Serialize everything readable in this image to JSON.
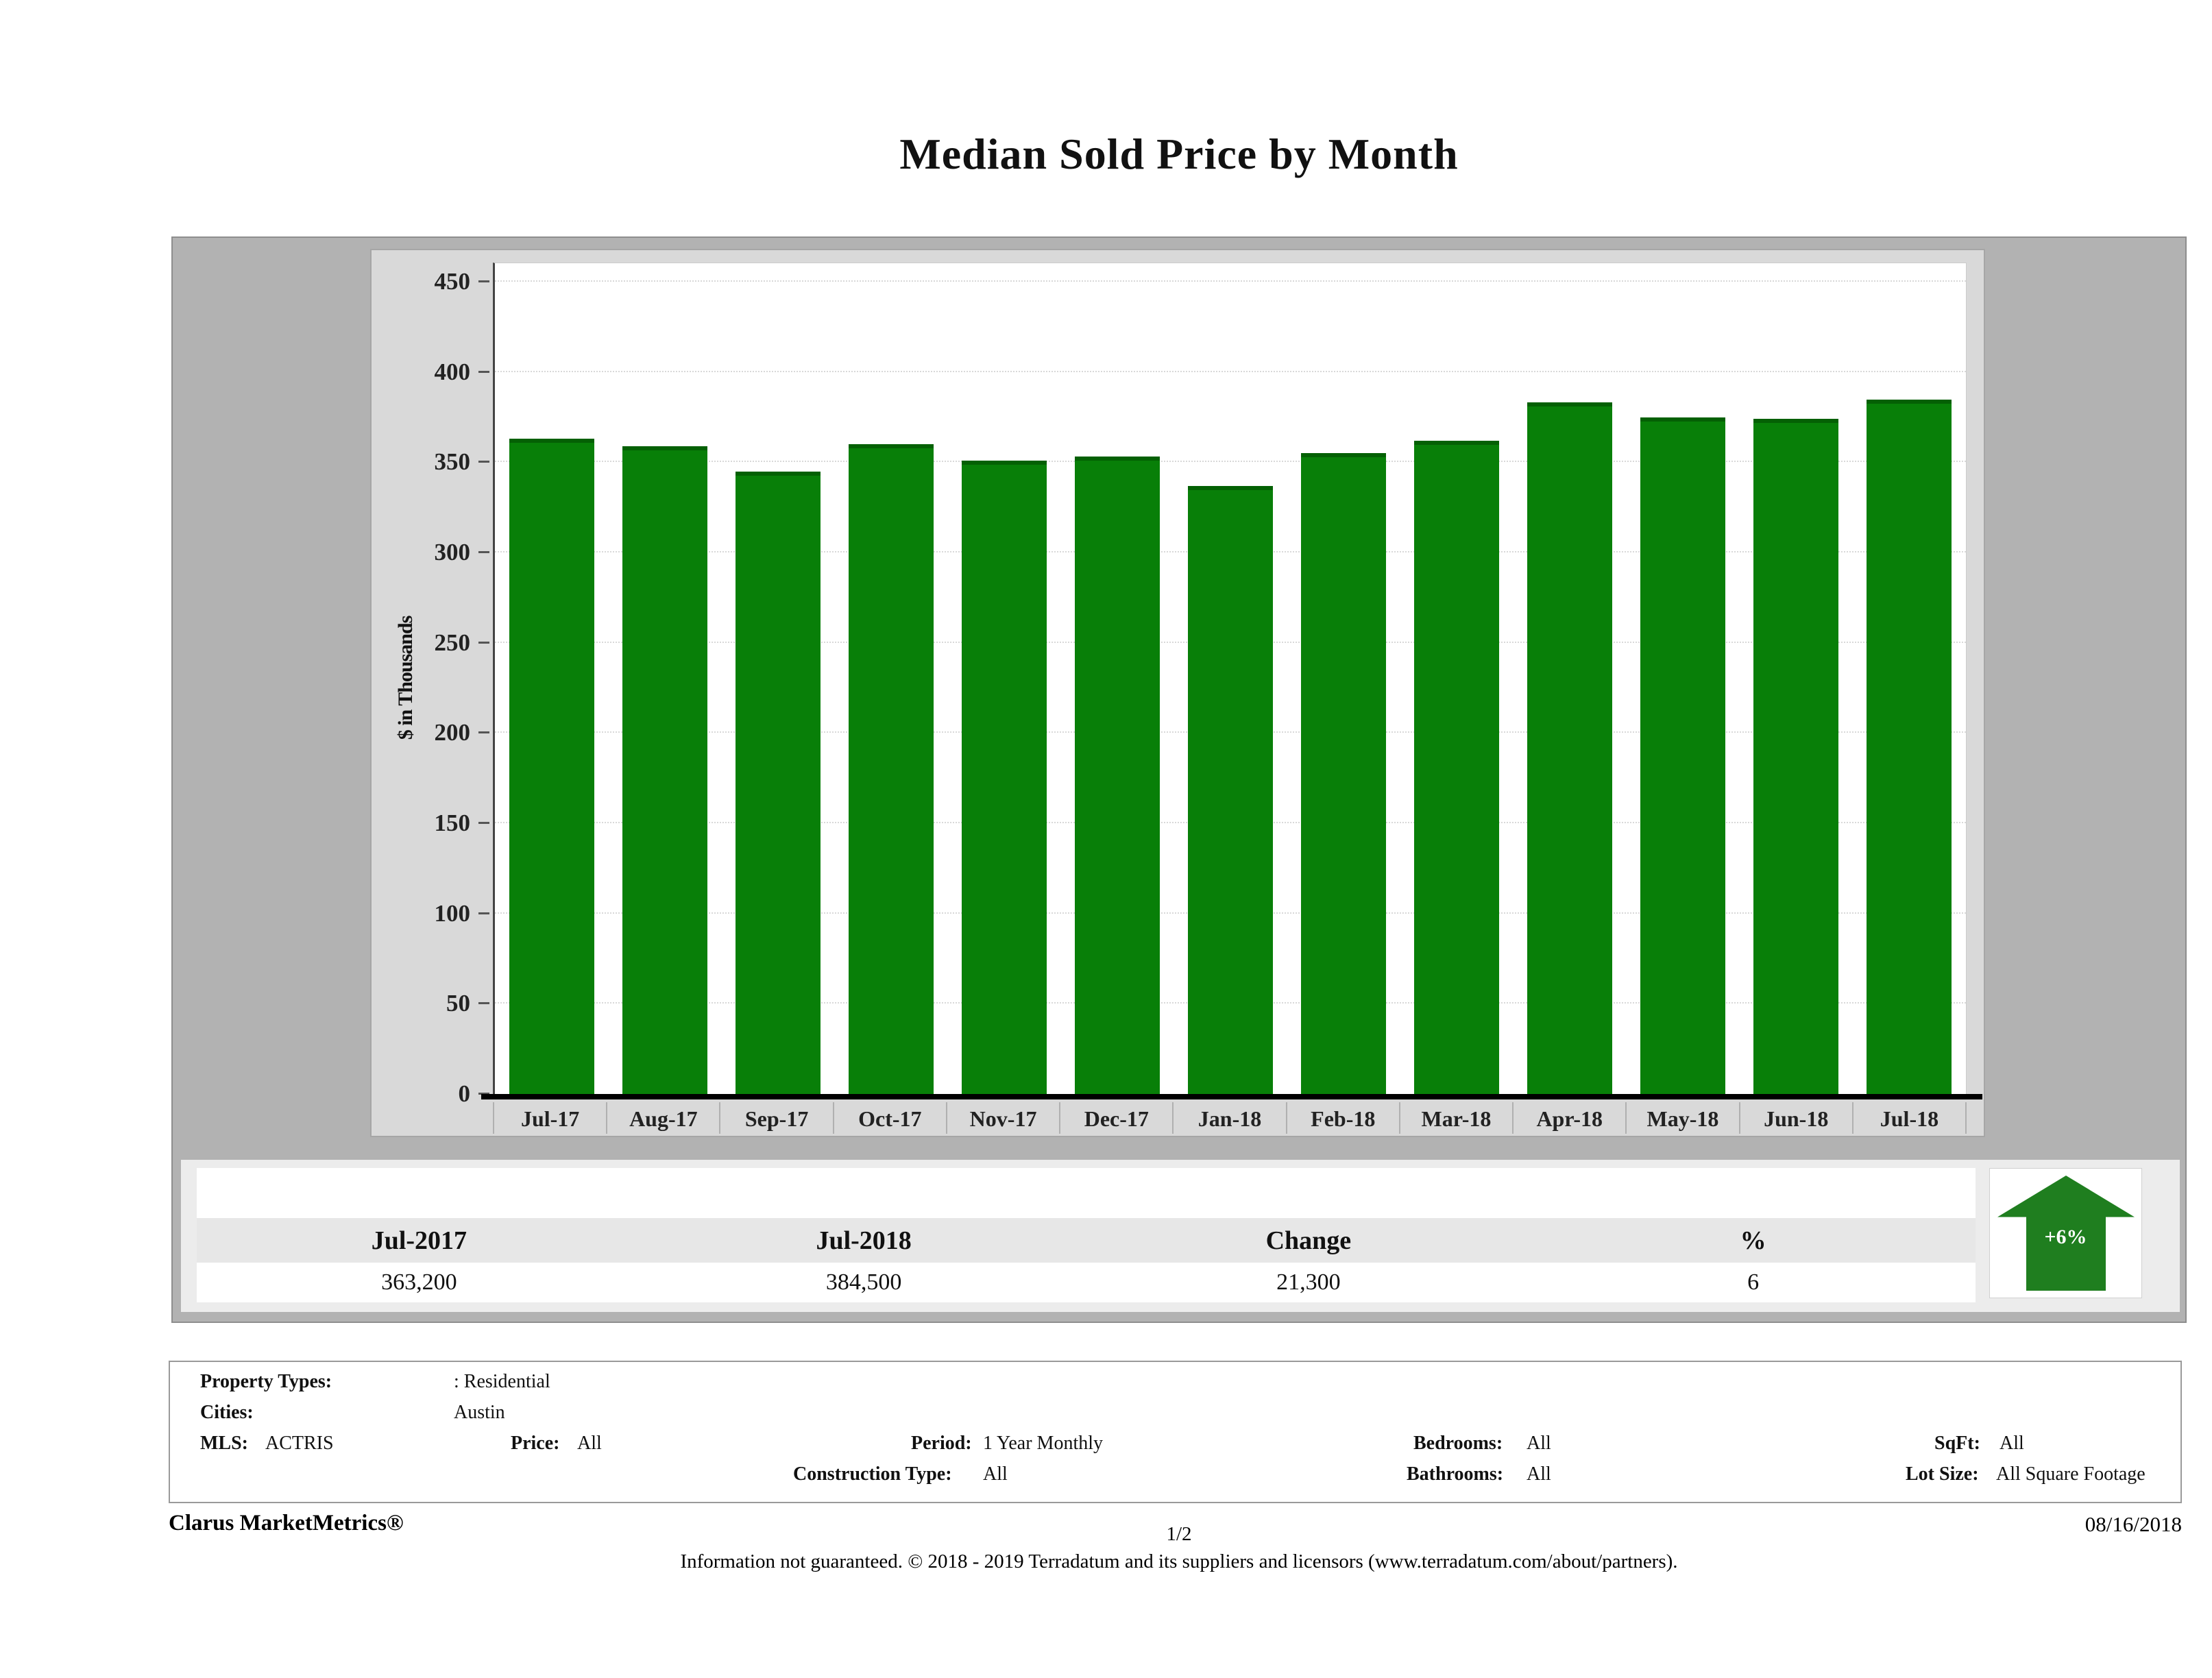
{
  "title": "Median Sold Price by Month",
  "chart_data": {
    "type": "bar",
    "title": "Median Sold Price by Month",
    "xlabel": "",
    "ylabel": "$ in Thousands",
    "ylim": [
      0,
      450
    ],
    "ytick_interval": 50,
    "grid": "horizontal-dotted",
    "legend": "none",
    "bar_color": "#087f08",
    "categories": [
      "Jul-17",
      "Aug-17",
      "Sep-17",
      "Oct-17",
      "Nov-17",
      "Dec-17",
      "Jan-18",
      "Feb-18",
      "Mar-18",
      "Apr-18",
      "May-18",
      "Jun-18",
      "Jul-18"
    ],
    "values": [
      363.2,
      359,
      345,
      360,
      351,
      353,
      337,
      355,
      362,
      383,
      375,
      374,
      384.5
    ]
  },
  "summary_table": {
    "columns": [
      "Jul-2017",
      "Jul-2018",
      "Change",
      "%"
    ],
    "values": [
      "363,200",
      "384,500",
      "21,300",
      "6"
    ]
  },
  "change_indicator": {
    "direction": "up",
    "label": "+6%",
    "color": "#1f7e1f"
  },
  "filters": {
    "property_types_label": "Property Types:",
    "property_types": ": Residential",
    "cities_label": "Cities:",
    "cities": "Austin",
    "mls_label": "MLS:",
    "mls": "ACTRIS",
    "price_label": "Price:",
    "price": "All",
    "period_label": "Period:",
    "period": "1 Year Monthly",
    "construction_type_label": "Construction Type:",
    "construction_type": "All",
    "bedrooms_label": "Bedrooms:",
    "bedrooms": "All",
    "bathrooms_label": "Bathrooms:",
    "bathrooms": "All",
    "sqft_label": "SqFt:",
    "sqft": "All",
    "lot_size_label": "Lot Size:",
    "lot_size": "All Square Footage"
  },
  "footer": {
    "brand": "Clarus MarketMetrics®",
    "page_number": "1/2",
    "date": "08/16/2018",
    "disclaimer": "Information not guaranteed. © 2018 - 2019 Terradatum and its suppliers and licensors (www.terradatum.com/about/partners)."
  },
  "colors": {
    "bar_green": "#087f08",
    "arrow_green": "#1f7e1f",
    "outer_panel_gray": "#b2b2b2",
    "inner_panel_gray": "#d9d9d9",
    "summary_band_gray": "#ececec"
  }
}
